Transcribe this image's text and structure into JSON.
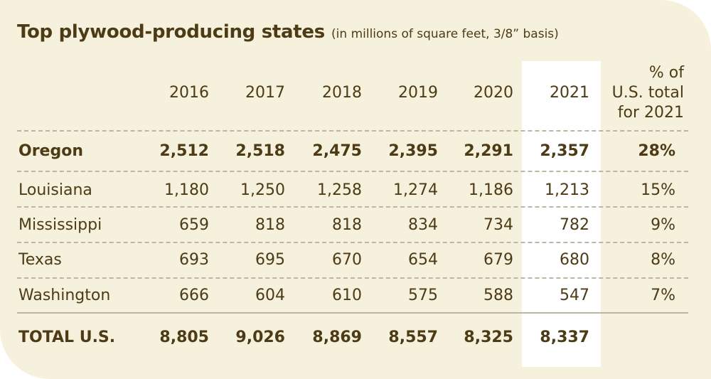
{
  "chart_data": {
    "type": "table",
    "title": "Top plywood-producing states",
    "subtitle": "(in millions of square feet, 3/8” basis)",
    "columns": [
      "2016",
      "2017",
      "2018",
      "2019",
      "2020",
      "2021"
    ],
    "pct_header": [
      "% of",
      "U.S. total",
      "for 2021"
    ],
    "rows": [
      {
        "state": "Oregon",
        "values": [
          "2,512",
          "2,518",
          "2,475",
          "2,395",
          "2,291",
          "2,357"
        ],
        "pct": "28%"
      },
      {
        "state": "Louisiana",
        "values": [
          "1,180",
          "1,250",
          "1,258",
          "1,274",
          "1,186",
          "1,213"
        ],
        "pct": "15%"
      },
      {
        "state": "Mississippi",
        "values": [
          "659",
          "818",
          "818",
          "834",
          "734",
          "782"
        ],
        "pct": "9%"
      },
      {
        "state": "Texas",
        "values": [
          "693",
          "695",
          "670",
          "654",
          "679",
          "680"
        ],
        "pct": "8%"
      },
      {
        "state": "Washington",
        "values": [
          "666",
          "604",
          "610",
          "575",
          "588",
          "547"
        ],
        "pct": "7%"
      }
    ],
    "total": {
      "label": "TOTAL U.S.",
      "values": [
        "8,805",
        "9,026",
        "8,869",
        "8,557",
        "8,325",
        "8,337"
      ]
    },
    "highlighted_column": "2021"
  },
  "colors": {
    "background": "#f6f1dc",
    "text": "#4d3b16",
    "highlight": "#ffffff",
    "rule": "#bdb6a5"
  }
}
